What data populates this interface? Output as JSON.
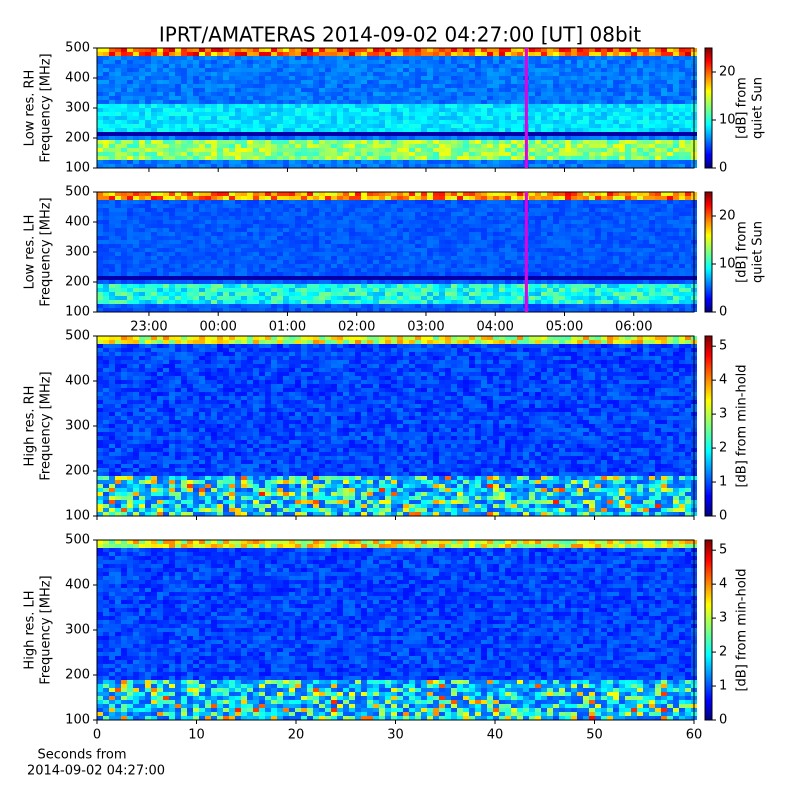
{
  "title": "IPRT/AMATERAS 2014-09-02 04:27:00 [UT]   08bit",
  "chart_data": [
    {
      "type": "heatmap",
      "ylabel": [
        "Low res. RH",
        "Frequency [MHz]"
      ],
      "ylim": [
        100,
        500
      ],
      "yticks": [
        100,
        200,
        300,
        400,
        500
      ],
      "xlim": [
        22.25,
        30.87
      ],
      "xticks": [
        {
          "value": 23,
          "label": "23:00"
        },
        {
          "value": 24,
          "label": "00:00"
        },
        {
          "value": 25,
          "label": "01:00"
        },
        {
          "value": 26,
          "label": "02:00"
        },
        {
          "value": 27,
          "label": "03:00"
        },
        {
          "value": 28,
          "label": "04:00"
        },
        {
          "value": 29,
          "label": "05:00"
        },
        {
          "value": 30,
          "label": "06:00"
        }
      ],
      "xtick_labels": false,
      "marker_x": 28.45,
      "marker_color": "#e000e0",
      "colorbar": {
        "label": [
          "[dB] from",
          "quiet Sun"
        ],
        "lim": [
          0,
          25
        ],
        "ticks": [
          0,
          10,
          20
        ]
      }
    },
    {
      "type": "heatmap",
      "ylabel": [
        "Low res. LH",
        "Frequency [MHz]"
      ],
      "ylim": [
        100,
        500
      ],
      "yticks": [
        100,
        200,
        300,
        400,
        500
      ],
      "xlim": [
        22.25,
        30.87
      ],
      "xticks": [
        {
          "value": 23,
          "label": "23:00"
        },
        {
          "value": 24,
          "label": "00:00"
        },
        {
          "value": 25,
          "label": "01:00"
        },
        {
          "value": 26,
          "label": "02:00"
        },
        {
          "value": 27,
          "label": "03:00"
        },
        {
          "value": 28,
          "label": "04:00"
        },
        {
          "value": 29,
          "label": "05:00"
        },
        {
          "value": 30,
          "label": "06:00"
        }
      ],
      "xtick_labels": true,
      "marker_x": 28.45,
      "marker_color": "#e000e0",
      "colorbar": {
        "label": [
          "[dB] from",
          "quiet Sun"
        ],
        "lim": [
          0,
          25
        ],
        "ticks": [
          0,
          10,
          20
        ]
      }
    },
    {
      "type": "heatmap",
      "ylabel": [
        "High res. RH",
        "Frequency [MHz]"
      ],
      "ylim": [
        100,
        500
      ],
      "yticks": [
        100,
        200,
        300,
        400,
        500
      ],
      "xlim": [
        0,
        60
      ],
      "xticks": [
        0,
        10,
        20,
        30,
        40,
        50,
        60
      ],
      "xtick_labels": false,
      "colorbar": {
        "label": [
          "[dB] from min-hold"
        ],
        "lim": [
          0,
          5.3
        ],
        "ticks": [
          0,
          1,
          2,
          3,
          4,
          5
        ]
      }
    },
    {
      "type": "heatmap",
      "ylabel": [
        "High res. LH",
        "Frequency [MHz]"
      ],
      "ylim": [
        100,
        500
      ],
      "yticks": [
        100,
        200,
        300,
        400,
        500
      ],
      "xlim": [
        0,
        60
      ],
      "xticks": [
        0,
        10,
        20,
        30,
        40,
        50,
        60
      ],
      "xtick_labels": true,
      "xlabel": [
        "Seconds from",
        "2014-09-02 04:27:00"
      ],
      "colorbar": {
        "label": [
          "[dB] from min-hold"
        ],
        "lim": [
          0,
          5.3
        ],
        "ticks": [
          0,
          1,
          2,
          3,
          4,
          5
        ]
      }
    }
  ]
}
